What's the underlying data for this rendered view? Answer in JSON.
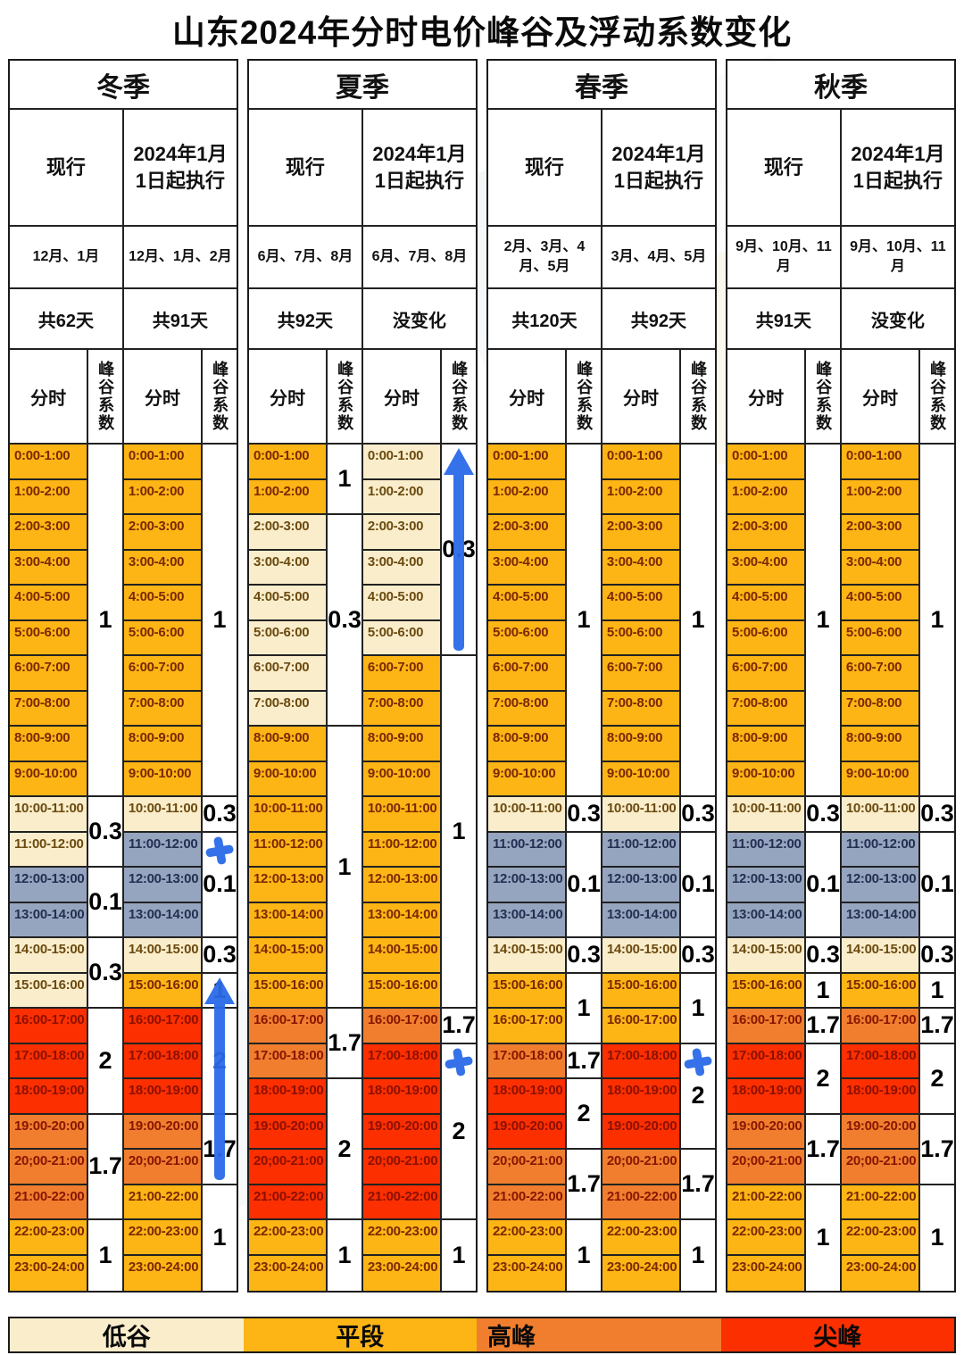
{
  "title": "山东2024年分时电价峰谷及浮动系数变化",
  "subheader": {
    "time": "分时",
    "coef": "峰谷系数"
  },
  "colors": {
    "valley": "#FAEDCB",
    "flat": "#FCB515",
    "peak": "#F07E2E",
    "sharp": "#FB2F00",
    "deep": "#96A5BF",
    "annotation_blue": "#2B6BE8"
  },
  "legend": {
    "items": [
      {
        "label": "低谷",
        "key": "valley"
      },
      {
        "label": "平段",
        "key": "flat"
      },
      {
        "label": "高峰",
        "key": "peak"
      },
      {
        "label": "尖峰",
        "key": "sharp"
      }
    ]
  },
  "time_slots": [
    "0:00-1:00",
    "1:00-2:00",
    "2:00-3:00",
    "3:00-4:00",
    "4:00-5:00",
    "5:00-6:00",
    "6:00-7:00",
    "7:00-8:00",
    "8:00-9:00",
    "9:00-10:00",
    "10:00-11:00",
    "11:00-12:00",
    "12:00-13:00",
    "13:00-14:00",
    "14:00-15:00",
    "15:00-16:00",
    "16:00-17:00",
    "17:00-18:00",
    "18:00-19:00",
    "19:00-20:00",
    "20;00-21:00",
    "21:00-22:00",
    "22:00-23:00",
    "23:00-24:00"
  ],
  "seasons": [
    {
      "name": "冬季",
      "columns": [
        {
          "plan": "现行",
          "months": "12月、1月",
          "days": "共62天",
          "segments": [
            {
              "from": 0,
              "to": 10,
              "cat": "flat",
              "coef": "1"
            },
            {
              "from": 10,
              "to": 12,
              "cat": "valley",
              "coef": "0.3"
            },
            {
              "from": 12,
              "to": 14,
              "cat": "deep",
              "coef": "0.1"
            },
            {
              "from": 14,
              "to": 16,
              "cat": "valley",
              "coef": "0.3"
            },
            {
              "from": 16,
              "to": 19,
              "cat": "sharp",
              "coef": "2"
            },
            {
              "from": 19,
              "to": 22,
              "cat": "peak",
              "coef": "1.7"
            },
            {
              "from": 22,
              "to": 24,
              "cat": "flat",
              "coef": "1"
            }
          ],
          "annotations": []
        },
        {
          "plan": "2024年1月1日起执行",
          "months": "12月、1月、2月",
          "days": "共91天",
          "segments": [
            {
              "from": 0,
              "to": 10,
              "cat": "flat",
              "coef": "1"
            },
            {
              "from": 10,
              "to": 11,
              "cat": "valley",
              "coef": "0.3"
            },
            {
              "from": 11,
              "to": 14,
              "cat": "deep",
              "coef": "0.1"
            },
            {
              "from": 14,
              "to": 15,
              "cat": "valley",
              "coef": "0.3"
            },
            {
              "from": 15,
              "to": 16,
              "cat": "flat",
              "coef": "1"
            },
            {
              "from": 16,
              "to": 19,
              "cat": "sharp",
              "coef": "2"
            },
            {
              "from": 19,
              "to": 21,
              "cat": "peak",
              "coef": "1.7"
            },
            {
              "from": 21,
              "to": 24,
              "cat": "flat",
              "coef": "1"
            }
          ],
          "annotations": [
            {
              "type": "plus",
              "row": 11
            },
            {
              "type": "arrow-up",
              "from_row": 15,
              "to_row": 21
            }
          ]
        }
      ]
    },
    {
      "name": "夏季",
      "columns": [
        {
          "plan": "现行",
          "months": "6月、7月、8月",
          "days": "共92天",
          "segments": [
            {
              "from": 0,
              "to": 2,
              "cat": "flat",
              "coef": "1"
            },
            {
              "from": 2,
              "to": 8,
              "cat": "valley",
              "coef": "0.3"
            },
            {
              "from": 8,
              "to": 16,
              "cat": "flat",
              "coef": "1"
            },
            {
              "from": 16,
              "to": 18,
              "cat": "peak",
              "coef": "1.7"
            },
            {
              "from": 18,
              "to": 22,
              "cat": "sharp",
              "coef": "2"
            },
            {
              "from": 22,
              "to": 24,
              "cat": "flat",
              "coef": "1"
            }
          ],
          "annotations": []
        },
        {
          "plan": "2024年1月1日起执行",
          "months": "6月、7月、8月",
          "days": "没变化",
          "segments": [
            {
              "from": 0,
              "to": 6,
              "cat": "valley",
              "coef": "0.3"
            },
            {
              "from": 6,
              "to": 16,
              "cat": "flat",
              "coef": "1"
            },
            {
              "from": 16,
              "to": 17,
              "cat": "peak",
              "coef": "1.7"
            },
            {
              "from": 17,
              "to": 22,
              "cat": "sharp",
              "coef": "2"
            },
            {
              "from": 22,
              "to": 24,
              "cat": "flat",
              "coef": "1"
            }
          ],
          "annotations": [
            {
              "type": "arrow-up",
              "from_row": 0,
              "to_row": 6
            },
            {
              "type": "plus",
              "row": 17
            }
          ]
        }
      ]
    },
    {
      "name": "春季",
      "columns": [
        {
          "plan": "现行",
          "months": "2月、3月、4月、5月",
          "days": "共120天",
          "segments": [
            {
              "from": 0,
              "to": 10,
              "cat": "flat",
              "coef": "1"
            },
            {
              "from": 10,
              "to": 11,
              "cat": "valley",
              "coef": "0.3"
            },
            {
              "from": 11,
              "to": 14,
              "cat": "deep",
              "coef": "0.1"
            },
            {
              "from": 14,
              "to": 15,
              "cat": "valley",
              "coef": "0.3"
            },
            {
              "from": 15,
              "to": 17,
              "cat": "flat",
              "coef": "1"
            },
            {
              "from": 17,
              "to": 18,
              "cat": "peak",
              "coef": "1.7"
            },
            {
              "from": 18,
              "to": 20,
              "cat": "sharp",
              "coef": "2"
            },
            {
              "from": 20,
              "to": 22,
              "cat": "peak",
              "coef": "1.7"
            },
            {
              "from": 22,
              "to": 24,
              "cat": "flat",
              "coef": "1"
            }
          ],
          "annotations": []
        },
        {
          "plan": "2024年1月1日起执行",
          "months": "3月、4月、5月",
          "days": "共92天",
          "segments": [
            {
              "from": 0,
              "to": 10,
              "cat": "flat",
              "coef": "1"
            },
            {
              "from": 10,
              "to": 11,
              "cat": "valley",
              "coef": "0.3"
            },
            {
              "from": 11,
              "to": 14,
              "cat": "deep",
              "coef": "0.1"
            },
            {
              "from": 14,
              "to": 15,
              "cat": "valley",
              "coef": "0.3"
            },
            {
              "from": 15,
              "to": 17,
              "cat": "flat",
              "coef": "1"
            },
            {
              "from": 17,
              "to": 20,
              "cat": "sharp",
              "coef": "2"
            },
            {
              "from": 20,
              "to": 22,
              "cat": "peak",
              "coef": "1.7"
            },
            {
              "from": 22,
              "to": 24,
              "cat": "flat",
              "coef": "1"
            }
          ],
          "annotations": [
            {
              "type": "plus",
              "row": 17
            }
          ]
        }
      ]
    },
    {
      "name": "秋季",
      "columns": [
        {
          "plan": "现行",
          "months": "9月、10月、11月",
          "days": "共91天",
          "segments": [
            {
              "from": 0,
              "to": 10,
              "cat": "flat",
              "coef": "1"
            },
            {
              "from": 10,
              "to": 11,
              "cat": "valley",
              "coef": "0.3"
            },
            {
              "from": 11,
              "to": 14,
              "cat": "deep",
              "coef": "0.1"
            },
            {
              "from": 14,
              "to": 15,
              "cat": "valley",
              "coef": "0.3"
            },
            {
              "from": 15,
              "to": 16,
              "cat": "flat",
              "coef": "1"
            },
            {
              "from": 16,
              "to": 17,
              "cat": "peak",
              "coef": "1.7"
            },
            {
              "from": 17,
              "to": 19,
              "cat": "sharp",
              "coef": "2"
            },
            {
              "from": 19,
              "to": 21,
              "cat": "peak",
              "coef": "1.7"
            },
            {
              "from": 21,
              "to": 24,
              "cat": "flat",
              "coef": "1"
            }
          ],
          "annotations": []
        },
        {
          "plan": "2024年1月1日起执行",
          "months": "9月、10月、11月",
          "days": "没变化",
          "segments": [
            {
              "from": 0,
              "to": 10,
              "cat": "flat",
              "coef": "1"
            },
            {
              "from": 10,
              "to": 11,
              "cat": "valley",
              "coef": "0.3"
            },
            {
              "from": 11,
              "to": 14,
              "cat": "deep",
              "coef": "0.1"
            },
            {
              "from": 14,
              "to": 15,
              "cat": "valley",
              "coef": "0.3"
            },
            {
              "from": 15,
              "to": 16,
              "cat": "flat",
              "coef": "1"
            },
            {
              "from": 16,
              "to": 17,
              "cat": "peak",
              "coef": "1.7"
            },
            {
              "from": 17,
              "to": 19,
              "cat": "sharp",
              "coef": "2"
            },
            {
              "from": 19,
              "to": 21,
              "cat": "peak",
              "coef": "1.7"
            },
            {
              "from": 21,
              "to": 24,
              "cat": "flat",
              "coef": "1"
            }
          ],
          "annotations": []
        }
      ]
    }
  ],
  "chart_data": {
    "type": "table",
    "title": "山东2024年分时电价峰谷及浮动系数变化",
    "categories": [
      "0:00-1:00",
      "1:00-2:00",
      "2:00-3:00",
      "3:00-4:00",
      "4:00-5:00",
      "5:00-6:00",
      "6:00-7:00",
      "7:00-8:00",
      "8:00-9:00",
      "9:00-10:00",
      "10:00-11:00",
      "11:00-12:00",
      "12:00-13:00",
      "13:00-14:00",
      "14:00-15:00",
      "15:00-16:00",
      "16:00-17:00",
      "17:00-18:00",
      "18:00-19:00",
      "19:00-20:00",
      "20;00-21:00",
      "21:00-22:00",
      "22:00-23:00",
      "23:00-24:00"
    ],
    "legend_entries": [
      "低谷",
      "平段",
      "高峰",
      "尖峰"
    ],
    "series": [
      {
        "name": "冬季-现行",
        "values": [
          1,
          1,
          1,
          1,
          1,
          1,
          1,
          1,
          1,
          1,
          0.3,
          0.3,
          0.1,
          0.1,
          0.3,
          0.3,
          2,
          2,
          2,
          1.7,
          1.7,
          1.7,
          1,
          1
        ]
      },
      {
        "name": "冬季-2024年1月1日起执行",
        "values": [
          1,
          1,
          1,
          1,
          1,
          1,
          1,
          1,
          1,
          1,
          0.3,
          0.1,
          0.1,
          0.1,
          0.3,
          1,
          2,
          2,
          2,
          1.7,
          1.7,
          1,
          1,
          1
        ]
      },
      {
        "name": "夏季-现行",
        "values": [
          1,
          1,
          0.3,
          0.3,
          0.3,
          0.3,
          0.3,
          0.3,
          1,
          1,
          1,
          1,
          1,
          1,
          1,
          1,
          1.7,
          1.7,
          2,
          2,
          2,
          2,
          1,
          1
        ]
      },
      {
        "name": "夏季-2024年1月1日起执行",
        "values": [
          0.3,
          0.3,
          0.3,
          0.3,
          0.3,
          0.3,
          1,
          1,
          1,
          1,
          1,
          1,
          1,
          1,
          1,
          1,
          1.7,
          2,
          2,
          2,
          2,
          2,
          1,
          1
        ]
      },
      {
        "name": "春季-现行",
        "values": [
          1,
          1,
          1,
          1,
          1,
          1,
          1,
          1,
          1,
          1,
          0.3,
          0.1,
          0.1,
          0.1,
          0.3,
          1,
          1,
          1.7,
          2,
          2,
          1.7,
          1.7,
          1,
          1
        ]
      },
      {
        "name": "春季-2024年1月1日起执行",
        "values": [
          1,
          1,
          1,
          1,
          1,
          1,
          1,
          1,
          1,
          1,
          0.3,
          0.1,
          0.1,
          0.1,
          0.3,
          1,
          1,
          2,
          2,
          2,
          1.7,
          1.7,
          1,
          1
        ]
      },
      {
        "name": "秋季-现行",
        "values": [
          1,
          1,
          1,
          1,
          1,
          1,
          1,
          1,
          1,
          1,
          0.3,
          0.1,
          0.1,
          0.1,
          0.3,
          1,
          1.7,
          2,
          2,
          1.7,
          1.7,
          1,
          1,
          1
        ]
      },
      {
        "name": "秋季-2024年1月1日起执行",
        "values": [
          1,
          1,
          1,
          1,
          1,
          1,
          1,
          1,
          1,
          1,
          0.3,
          0.1,
          0.1,
          0.1,
          0.3,
          1,
          1.7,
          2,
          2,
          1.7,
          1.7,
          1,
          1,
          1
        ]
      }
    ]
  }
}
